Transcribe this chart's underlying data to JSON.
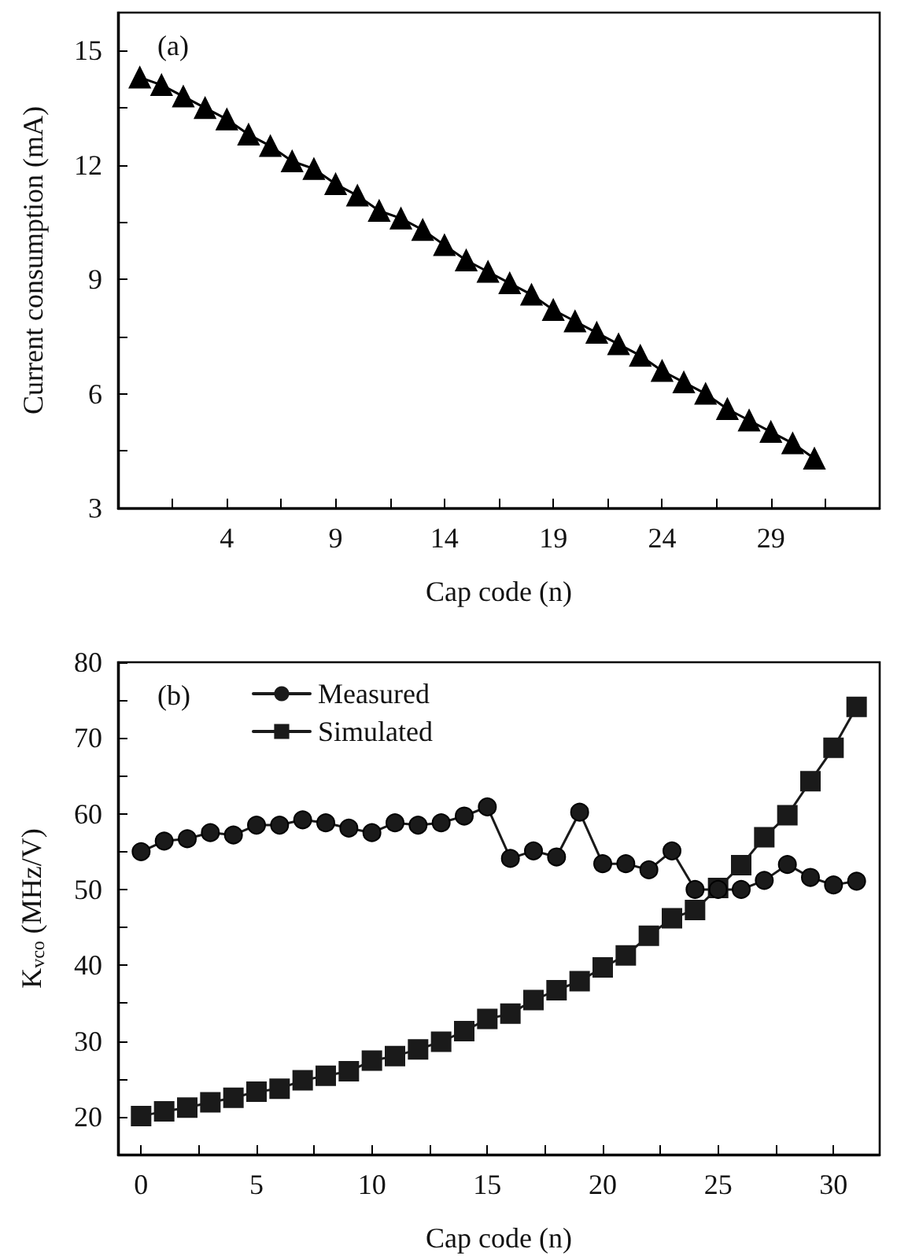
{
  "chart_data": [
    {
      "type": "line",
      "xlabel": "Cap code (n)",
      "ylabel": "Current consumption (mA)",
      "annotations": [
        "(a)"
      ],
      "x": [
        0,
        1,
        2,
        3,
        4,
        5,
        6,
        7,
        8,
        9,
        10,
        11,
        12,
        13,
        14,
        15,
        16,
        17,
        18,
        19,
        20,
        21,
        22,
        23,
        24,
        25,
        26,
        27,
        28,
        29,
        30,
        31
      ],
      "series": [
        {
          "color": "#000000",
          "marker": "triangle",
          "values": [
            14.3,
            14.1,
            13.8,
            13.5,
            13.2,
            12.8,
            12.5,
            12.1,
            11.9,
            11.5,
            11.2,
            10.8,
            10.6,
            10.3,
            9.9,
            9.5,
            9.2,
            8.9,
            8.6,
            8.2,
            7.9,
            7.6,
            7.3,
            7.0,
            6.6,
            6.3,
            6.0,
            5.6,
            5.3,
            5.0,
            4.7,
            4.3
          ]
        }
      ],
      "xlim": [
        -1,
        34
      ],
      "xticks": [
        {
          "value": 1.5,
          "label": null
        },
        4,
        {
          "value": 6.5,
          "label": null
        },
        9,
        {
          "value": 11.5,
          "label": null
        },
        14,
        {
          "value": 16.5,
          "label": null
        },
        19,
        {
          "value": 21.5,
          "label": null
        },
        24,
        {
          "value": 26.5,
          "label": null
        },
        29,
        {
          "value": 31.5,
          "label": null
        }
      ],
      "ylim": [
        3,
        16
      ],
      "yticks": [
        3,
        {
          "value": 4.5,
          "label": null
        },
        6,
        {
          "value": 7.5,
          "label": null
        },
        9,
        {
          "value": 10.5,
          "label": null
        },
        12,
        {
          "value": 13.5,
          "label": null
        },
        15
      ],
      "grid": false,
      "legend": false,
      "line_style": "solid"
    },
    {
      "type": "line",
      "xlabel": "Cap code (n)",
      "ylabel": "K$_{vco}$ (MHz/V)",
      "annotations": [
        "(b)"
      ],
      "x": [
        0,
        1,
        2,
        3,
        4,
        5,
        6,
        7,
        8,
        9,
        10,
        11,
        12,
        13,
        14,
        15,
        16,
        17,
        18,
        19,
        20,
        21,
        22,
        23,
        24,
        25,
        26,
        27,
        28,
        29,
        30,
        31
      ],
      "series": [
        {
          "name": "Measured",
          "color": "#1a1a1a",
          "marker": "circle",
          "values": [
            55.0,
            56.4,
            56.7,
            57.5,
            57.2,
            58.5,
            58.5,
            59.2,
            58.8,
            58.1,
            57.5,
            58.8,
            58.5,
            58.8,
            59.7,
            60.9,
            54.1,
            55.1,
            54.3,
            60.2,
            53.4,
            53.4,
            52.6,
            55.1,
            50.0,
            50.0,
            50.0,
            51.2,
            53.3,
            51.6,
            50.6,
            51.1
          ]
        },
        {
          "name": "Simulated",
          "color": "#1a1a1a",
          "marker": "square",
          "values": [
            20.1,
            20.7,
            21.2,
            21.9,
            22.5,
            23.3,
            23.7,
            24.8,
            25.4,
            26.0,
            27.4,
            28.0,
            28.9,
            29.9,
            31.3,
            32.9,
            33.6,
            35.4,
            36.7,
            37.9,
            39.7,
            41.3,
            43.9,
            46.2,
            47.3,
            50.2,
            53.2,
            56.9,
            59.8,
            64.3,
            68.7,
            74.1
          ]
        }
      ],
      "xlim": [
        -1,
        32
      ],
      "xticks": [
        0,
        {
          "value": 2.5,
          "label": null
        },
        5,
        {
          "value": 7.5,
          "label": null
        },
        10,
        {
          "value": 12.5,
          "label": null
        },
        15,
        {
          "value": 17.5,
          "label": null
        },
        20,
        {
          "value": 22.5,
          "label": null
        },
        25,
        {
          "value": 27.5,
          "label": null
        },
        30
      ],
      "ylim": [
        15,
        80
      ],
      "yticks": [
        20,
        {
          "value": 25,
          "label": null
        },
        30,
        {
          "value": 35,
          "label": null
        },
        40,
        {
          "value": 45,
          "label": null
        },
        50,
        {
          "value": 55,
          "label": null
        },
        60,
        {
          "value": 65,
          "label": null
        },
        70,
        {
          "value": 75,
          "label": null
        },
        80
      ],
      "grid": false,
      "legend": "top left",
      "line_style": "solid"
    }
  ]
}
